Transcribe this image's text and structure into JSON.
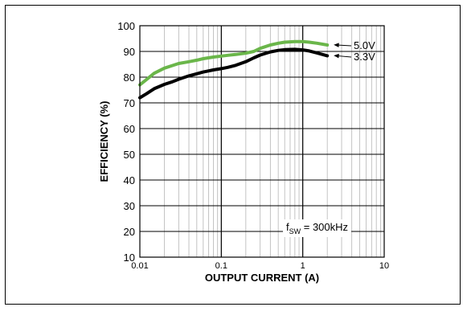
{
  "chart_data": {
    "type": "line",
    "xlabel": "OUTPUT CURRENT (A)",
    "ylabel": "EFFICIENCY (%)",
    "xscale": "log",
    "xlim": [
      0.01,
      10
    ],
    "ylim": [
      10,
      100
    ],
    "x_ticks": [
      "0.01",
      "0.1",
      "1",
      "10"
    ],
    "y_ticks": [
      "10",
      "20",
      "30",
      "40",
      "50",
      "60",
      "70",
      "80",
      "90",
      "100"
    ],
    "grid": true,
    "annotation": {
      "base": "f",
      "sub": "SW",
      "rest": " = 300kHz"
    },
    "series": [
      {
        "name": "5.0V",
        "color": "#6ab64a",
        "x": [
          0.01,
          0.012,
          0.015,
          0.02,
          0.025,
          0.03,
          0.04,
          0.05,
          0.06,
          0.08,
          0.1,
          0.12,
          0.15,
          0.2,
          0.25,
          0.3,
          0.4,
          0.5,
          0.6,
          0.8,
          1.0,
          1.2,
          1.5,
          2.0
        ],
        "y": [
          77,
          79,
          81.5,
          83.5,
          84.5,
          85.3,
          86,
          86.6,
          87.2,
          87.8,
          88.2,
          88.5,
          88.8,
          89.3,
          90,
          91.2,
          92.5,
          93.2,
          93.6,
          93.8,
          93.8,
          93.6,
          93.2,
          92.5
        ]
      },
      {
        "name": "3.3V",
        "color": "#000000",
        "x": [
          0.01,
          0.012,
          0.015,
          0.02,
          0.025,
          0.03,
          0.04,
          0.05,
          0.06,
          0.08,
          0.1,
          0.12,
          0.15,
          0.2,
          0.25,
          0.3,
          0.4,
          0.5,
          0.6,
          0.8,
          1.0,
          1.2,
          1.5,
          2.0
        ],
        "y": [
          72,
          73.5,
          75.5,
          77.2,
          78.2,
          79.2,
          80.5,
          81.3,
          82,
          82.8,
          83.3,
          83.8,
          84.6,
          86,
          87.5,
          88.6,
          89.8,
          90.4,
          90.7,
          90.8,
          90.6,
          90.2,
          89.4,
          88.3
        ]
      }
    ]
  }
}
